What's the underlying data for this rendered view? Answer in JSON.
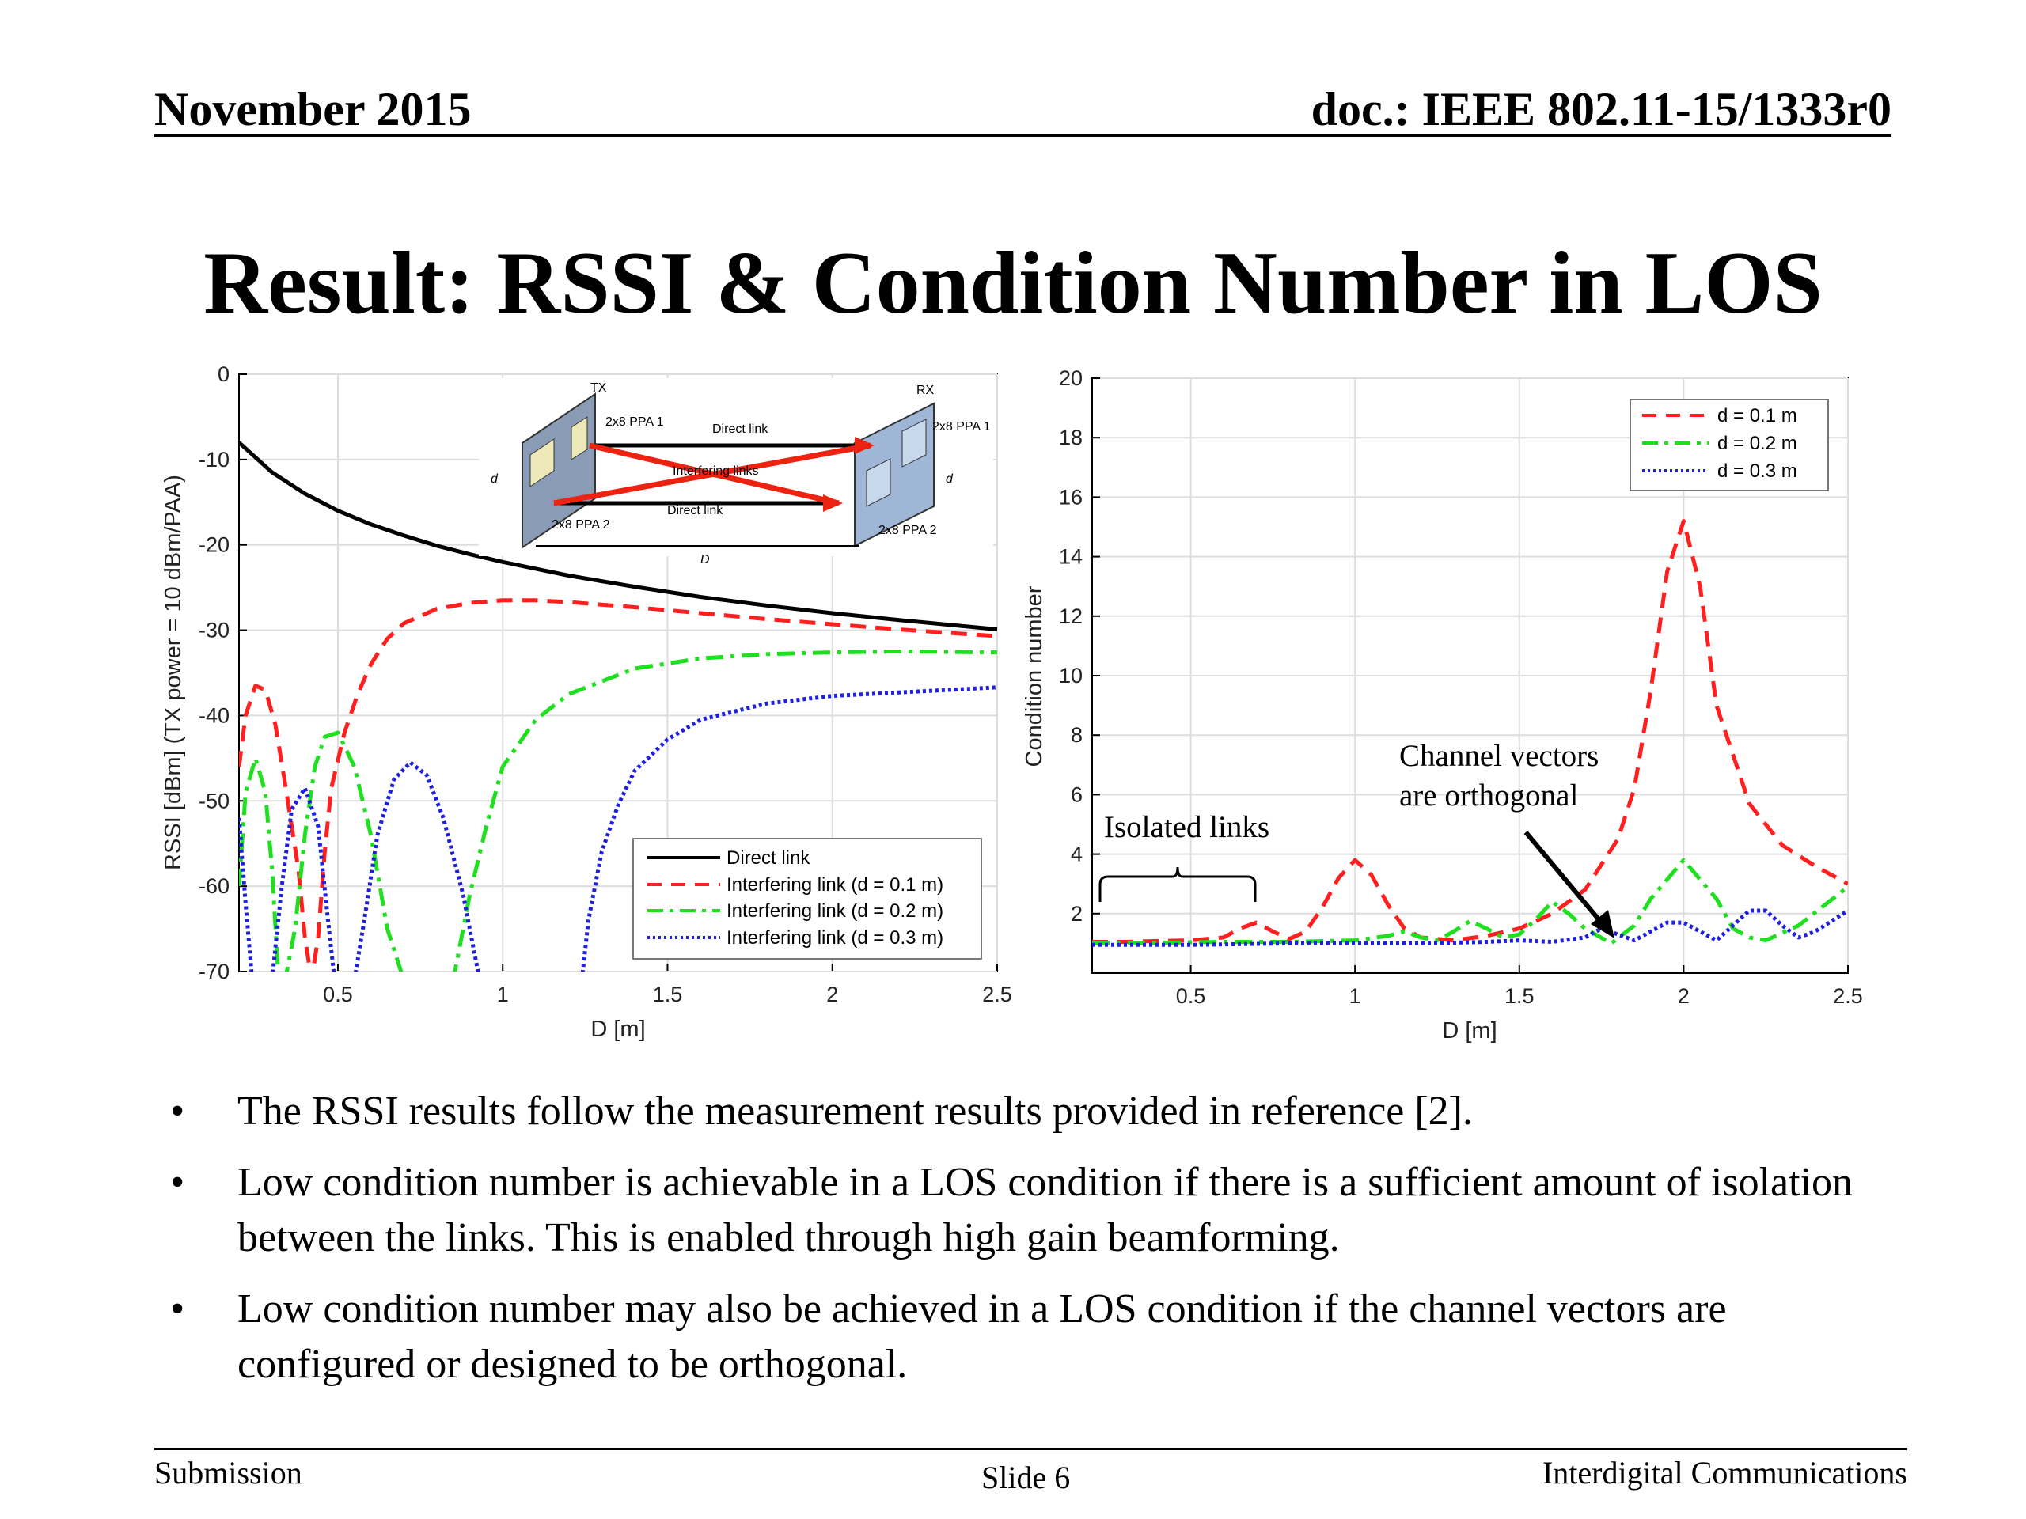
{
  "header": {
    "date": "November 2015",
    "doc": "doc.: IEEE 802.11-15/1333r0"
  },
  "title": "Result: RSSI & Condition Number in LOS",
  "colors": {
    "direct": "#000000",
    "d01": "#ff1f1f",
    "d02": "#1fe01f",
    "d03": "#1f1fe0"
  },
  "chart_data": [
    {
      "type": "line",
      "xlabel": "D [m]",
      "ylabel": "RSSI [dBm] (TX power = 10 dBm/PAA)",
      "xlim": [
        0.2,
        2.5
      ],
      "ylim": [
        -70,
        0
      ],
      "xticks": [
        0.5,
        1,
        1.5,
        2,
        2.5
      ],
      "xtick_labels": [
        "0.5",
        "1",
        "1.5",
        "2",
        "2.5"
      ],
      "yticks": [
        0,
        -10,
        -20,
        -30,
        -40,
        -50,
        -60,
        -70
      ],
      "ytick_labels": [
        "0",
        "-10",
        "-20",
        "-30",
        "-40",
        "-50",
        "-60",
        "-70"
      ],
      "grid": true,
      "legend_position": "bottom-right",
      "series": [
        {
          "name": "Direct link",
          "style": "solid",
          "x": [
            0.2,
            0.3,
            0.4,
            0.5,
            0.6,
            0.7,
            0.8,
            0.9,
            1.0,
            1.2,
            1.4,
            1.6,
            1.8,
            2.0,
            2.2,
            2.5
          ],
          "y": [
            -8,
            -11.5,
            -14,
            -16,
            -17.6,
            -18.9,
            -20.1,
            -21.1,
            -22,
            -23.6,
            -24.9,
            -26.1,
            -27.1,
            -28,
            -28.8,
            -29.9
          ]
        },
        {
          "name": "Interfering link (d = 0.1 m)",
          "style": "dashed",
          "x": [
            0.2,
            0.22,
            0.25,
            0.28,
            0.31,
            0.34,
            0.38,
            0.4,
            0.42,
            0.44,
            0.46,
            0.48,
            0.52,
            0.56,
            0.6,
            0.65,
            0.7,
            0.8,
            0.9,
            1.0,
            1.1,
            1.2,
            1.4,
            1.6,
            1.8,
            2.0,
            2.2,
            2.5
          ],
          "y": [
            -46,
            -40,
            -36.5,
            -37,
            -41,
            -48,
            -58,
            -66,
            -71,
            -66,
            -56,
            -48.5,
            -42,
            -37.5,
            -34,
            -31,
            -29.2,
            -27.5,
            -26.8,
            -26.5,
            -26.5,
            -26.7,
            -27.3,
            -28,
            -28.7,
            -29.3,
            -29.9,
            -30.7
          ]
        },
        {
          "name": "Interfering link (d = 0.2 m)",
          "style": "dashdot",
          "x": [
            0.2,
            0.22,
            0.25,
            0.28,
            0.3,
            0.32,
            0.34,
            0.37,
            0.4,
            0.43,
            0.46,
            0.5,
            0.55,
            0.6,
            0.65,
            0.7,
            0.72,
            0.74,
            0.8,
            0.85,
            0.9,
            0.95,
            1.0,
            1.1,
            1.2,
            1.4,
            1.6,
            1.8,
            2.0,
            2.2,
            2.5
          ],
          "y": [
            -60,
            -49,
            -45,
            -49,
            -58,
            -71,
            -71,
            -65,
            -54,
            -46,
            -42.5,
            -42,
            -46,
            -54,
            -65,
            -71,
            -71,
            -71,
            -71,
            -71,
            -61,
            -53,
            -46,
            -40.5,
            -37.5,
            -34.5,
            -33.3,
            -32.8,
            -32.6,
            -32.5,
            -32.6
          ]
        },
        {
          "name": "Interfering link (d = 0.3 m)",
          "style": "dotted",
          "x": [
            0.2,
            0.22,
            0.24,
            0.26,
            0.28,
            0.3,
            0.33,
            0.36,
            0.4,
            0.44,
            0.47,
            0.49,
            0.51,
            0.55,
            0.58,
            0.62,
            0.67,
            0.72,
            0.77,
            0.82,
            0.88,
            0.93,
            0.97,
            1.0,
            1.02,
            1.05,
            1.15,
            1.24,
            1.26,
            1.3,
            1.35,
            1.4,
            1.5,
            1.6,
            1.8,
            2.0,
            2.2,
            2.5
          ],
          "y": [
            -52,
            -62,
            -71,
            -71,
            -71,
            -71,
            -60,
            -51,
            -48.5,
            -53,
            -64,
            -71,
            -71,
            -71,
            -64,
            -54,
            -47.5,
            -45.5,
            -47,
            -52,
            -61,
            -71,
            -71,
            -71,
            -71,
            -71,
            -71,
            -71,
            -64,
            -56,
            -50.5,
            -46.5,
            -42.8,
            -40.5,
            -38.6,
            -37.7,
            -37.3,
            -36.7
          ]
        }
      ],
      "inset": {
        "tx": "TX",
        "rx": "RX",
        "ppa1": "2x8 PPA 1",
        "ppa2": "2x8 PPA 2",
        "direct_top": "Direct link",
        "interfering": "Interfering links",
        "direct_bottom": "Direct link",
        "d": "d",
        "D": "D"
      }
    },
    {
      "type": "line",
      "xlabel": "D [m]",
      "ylabel": "Condition number",
      "xlim": [
        0.2,
        2.5
      ],
      "ylim": [
        0,
        20
      ],
      "xticks": [
        0.5,
        1,
        1.5,
        2,
        2.5
      ],
      "xtick_labels": [
        "0.5",
        "1",
        "1.5",
        "2",
        "2.5"
      ],
      "yticks": [
        2,
        4,
        6,
        8,
        10,
        12,
        14,
        16,
        18,
        20
      ],
      "ytick_labels": [
        "2",
        "4",
        "6",
        "8",
        "10",
        "12",
        "14",
        "16",
        "18",
        "20"
      ],
      "grid": true,
      "legend_position": "top-right",
      "series": [
        {
          "name": "d = 0.1 m",
          "style": "dashed",
          "x": [
            0.2,
            0.3,
            0.4,
            0.5,
            0.6,
            0.65,
            0.7,
            0.75,
            0.8,
            0.85,
            0.9,
            0.95,
            1.0,
            1.05,
            1.1,
            1.15,
            1.2,
            1.3,
            1.4,
            1.5,
            1.6,
            1.7,
            1.8,
            1.85,
            1.9,
            1.95,
            2.0,
            2.05,
            2.1,
            2.2,
            2.3,
            2.4,
            2.5
          ],
          "y": [
            1.05,
            1.05,
            1.08,
            1.1,
            1.2,
            1.5,
            1.7,
            1.4,
            1.15,
            1.4,
            2.2,
            3.2,
            3.8,
            3.3,
            2.3,
            1.5,
            1.2,
            1.1,
            1.25,
            1.5,
            2.0,
            2.8,
            4.5,
            6.2,
            9.5,
            13.5,
            15.2,
            13.0,
            9.0,
            5.7,
            4.3,
            3.6,
            3.0
          ]
        },
        {
          "name": "d = 0.2 m",
          "style": "dashdot",
          "x": [
            0.2,
            0.4,
            0.6,
            0.8,
            1.0,
            1.1,
            1.15,
            1.2,
            1.25,
            1.3,
            1.35,
            1.4,
            1.45,
            1.5,
            1.55,
            1.6,
            1.65,
            1.7,
            1.78,
            1.85,
            1.9,
            2.0,
            2.1,
            2.15,
            2.2,
            2.25,
            2.35,
            2.5
          ],
          "y": [
            1.0,
            1.02,
            1.05,
            1.05,
            1.1,
            1.25,
            1.4,
            1.2,
            1.1,
            1.4,
            1.75,
            1.5,
            1.2,
            1.3,
            1.8,
            2.4,
            2.0,
            1.5,
            1.0,
            1.6,
            2.5,
            3.8,
            2.5,
            1.5,
            1.2,
            1.1,
            1.6,
            2.9
          ]
        },
        {
          "name": "d = 0.3 m",
          "style": "dotted",
          "x": [
            0.2,
            0.5,
            0.8,
            1.0,
            1.2,
            1.4,
            1.5,
            1.6,
            1.7,
            1.75,
            1.8,
            1.85,
            1.9,
            1.95,
            2.0,
            2.05,
            2.1,
            2.15,
            2.2,
            2.25,
            2.3,
            2.35,
            2.4,
            2.5
          ],
          "y": [
            0.95,
            0.95,
            1.0,
            1.0,
            1.0,
            1.05,
            1.1,
            1.05,
            1.2,
            1.5,
            1.3,
            1.1,
            1.4,
            1.7,
            1.7,
            1.4,
            1.1,
            1.6,
            2.1,
            2.1,
            1.6,
            1.2,
            1.4,
            2.1
          ]
        }
      ],
      "annotations": {
        "isolated": "Isolated links",
        "orthogonal_1": "Channel vectors",
        "orthogonal_2": "are orthogonal"
      }
    }
  ],
  "bullets": [
    "The RSSI results follow the measurement results provided in reference [2].",
    "Low condition number is achievable in a LOS condition if there is a sufficient amount of isolation between the links. This is enabled through high gain beamforming.",
    "Low condition number may also be achieved in a LOS condition if the channel vectors are configured or designed to be orthogonal."
  ],
  "bullet_symbol": "•",
  "footer": {
    "left": "Submission",
    "center": "Slide 6",
    "right": "Interdigital Communications"
  }
}
